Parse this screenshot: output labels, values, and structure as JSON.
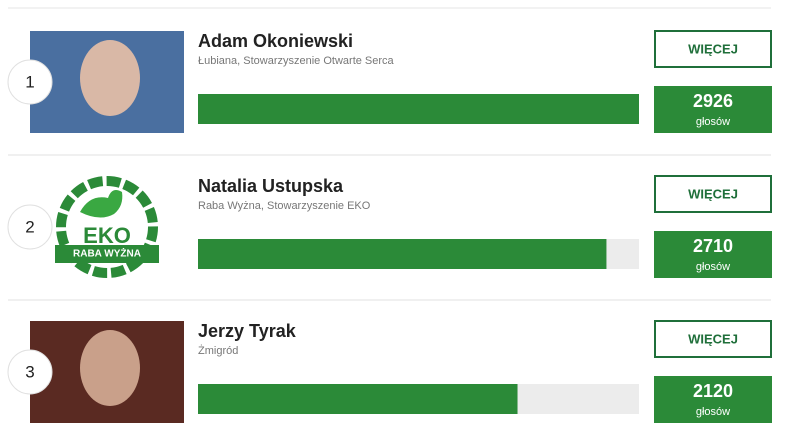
{
  "ranking": {
    "button_label": "WIĘCEJ",
    "votes_label": "głosów",
    "entries": [
      {
        "rank": 1,
        "name": "Adam Okoniewski",
        "location": "Łubiana, Stowarzyszenie Otwarte Serca",
        "votes": 2926
      },
      {
        "rank": 2,
        "name": "Natalia Ustupska",
        "location": "Raba Wyżna, Stowarzyszenie EKO",
        "votes": 2710,
        "logo_title": "EKO",
        "logo_subtitle": "RABA WYŻNA"
      },
      {
        "rank": 3,
        "name": "Jerzy Tyrak",
        "location": "Żmigród",
        "votes": 2120
      }
    ]
  }
}
